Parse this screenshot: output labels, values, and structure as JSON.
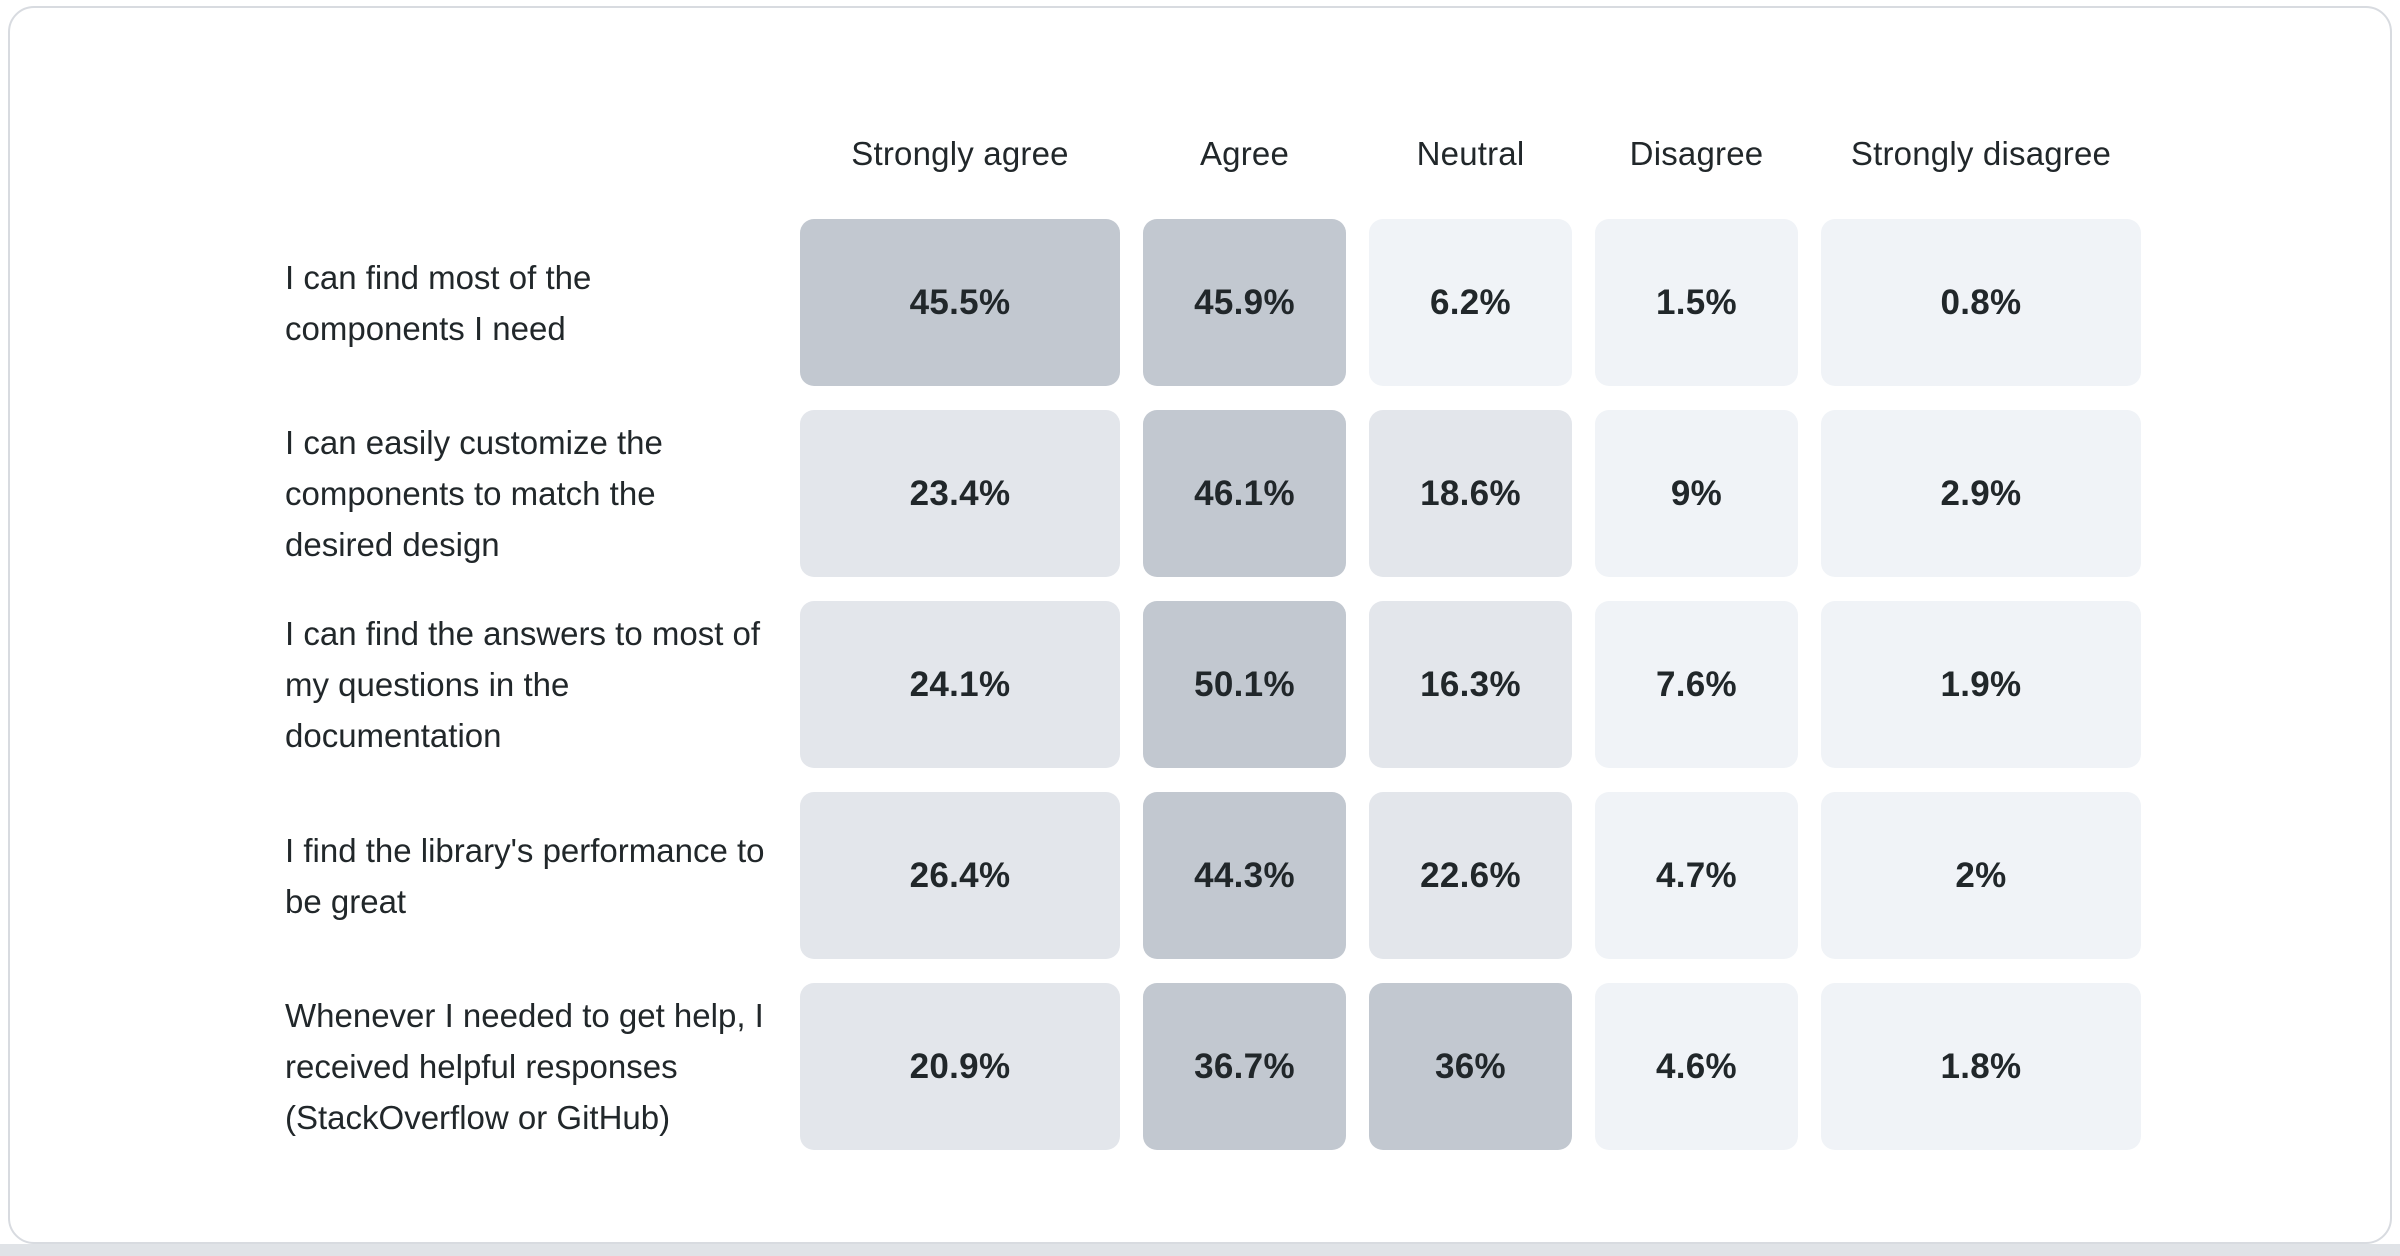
{
  "chart_data": {
    "type": "heatmap",
    "columns": [
      "Strongly agree",
      "Agree",
      "Neutral",
      "Disagree",
      "Strongly disagree"
    ],
    "unit": "%",
    "rows": [
      {
        "label": "I can find most of the components I need",
        "values": [
          45.5,
          45.9,
          6.2,
          1.5,
          0.8
        ],
        "display": [
          "45.5%",
          "45.9%",
          "6.2%",
          "1.5%",
          "0.8%"
        ]
      },
      {
        "label": "I can easily customize the components to match the desired design",
        "values": [
          23.4,
          46.1,
          18.6,
          9,
          2.9
        ],
        "display": [
          "23.4%",
          "46.1%",
          "18.6%",
          "9%",
          "2.9%"
        ]
      },
      {
        "label": "I can find the answers to most of my questions in the documentation",
        "values": [
          24.1,
          50.1,
          16.3,
          7.6,
          1.9
        ],
        "display": [
          "24.1%",
          "50.1%",
          "16.3%",
          "7.6%",
          "1.9%"
        ]
      },
      {
        "label": "I find the library's performance to be great",
        "values": [
          26.4,
          44.3,
          22.6,
          4.7,
          2
        ],
        "display": [
          "26.4%",
          "44.3%",
          "22.6%",
          "4.7%",
          "2%"
        ]
      },
      {
        "label": "Whenever I needed to get help, I received helpful responses (StackOverflow or GitHub)",
        "values": [
          20.9,
          36.7,
          36,
          4.6,
          1.8
        ],
        "display": [
          "20.9%",
          "36.7%",
          "36%",
          "4.6%",
          "1.8%"
        ]
      }
    ],
    "color_scale": {
      "thresholds": [
        10,
        30
      ],
      "low": "#f0f3f7",
      "mid": "#e3e6eb",
      "high": "#c2c8d0"
    },
    "text_color": "#21272a",
    "legend_position": "none",
    "grid": false
  }
}
